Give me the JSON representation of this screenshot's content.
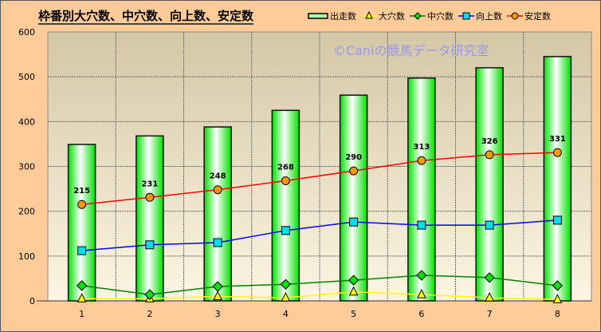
{
  "chart_data": {
    "type": "bar",
    "title": "枠番別大穴数、中穴数、向上数、安定数",
    "categories": [
      "1",
      "2",
      "3",
      "4",
      "5",
      "6",
      "7",
      "8"
    ],
    "ylim": [
      0,
      600
    ],
    "yticks": [
      0,
      100,
      200,
      300,
      400,
      500,
      600
    ],
    "grid": true,
    "legend_placement": "top-right",
    "series": [
      {
        "name": "出走数",
        "kind": "bar",
        "color": "#00ff00",
        "values": [
          349,
          368,
          388,
          425,
          459,
          497,
          520,
          545
        ]
      },
      {
        "name": "大穴数",
        "kind": "line",
        "marker": "triangle",
        "color": "#ffff00",
        "values": [
          5,
          5,
          10,
          7,
          20,
          14,
          7,
          3
        ]
      },
      {
        "name": "中穴数",
        "kind": "line",
        "marker": "diamond",
        "color": "#008000",
        "values": [
          34,
          14,
          32,
          37,
          46,
          57,
          52,
          34
        ]
      },
      {
        "name": "向上数",
        "kind": "line",
        "marker": "square",
        "color": "#0000ff",
        "values": [
          112,
          125,
          130,
          157,
          176,
          169,
          169,
          180
        ]
      },
      {
        "name": "安定数",
        "kind": "line",
        "marker": "circle",
        "color": "#ff0000",
        "values": [
          215,
          231,
          248,
          268,
          290,
          313,
          326,
          331
        ],
        "data_labels": true
      }
    ],
    "watermark": "©Caniの競馬データ研究室"
  }
}
